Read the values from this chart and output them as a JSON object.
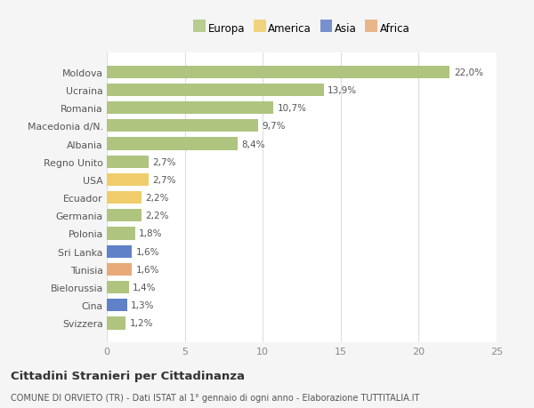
{
  "countries": [
    "Moldova",
    "Ucraina",
    "Romania",
    "Macedonia d/N.",
    "Albania",
    "Regno Unito",
    "USA",
    "Ecuador",
    "Germania",
    "Polonia",
    "Sri Lanka",
    "Tunisia",
    "Bielorussia",
    "Cina",
    "Svizzera"
  ],
  "values": [
    22.0,
    13.9,
    10.7,
    9.7,
    8.4,
    2.7,
    2.7,
    2.2,
    2.2,
    1.8,
    1.6,
    1.6,
    1.4,
    1.3,
    1.2
  ],
  "labels": [
    "22,0%",
    "13,9%",
    "10,7%",
    "9,7%",
    "8,4%",
    "2,7%",
    "2,7%",
    "2,2%",
    "2,2%",
    "1,8%",
    "1,6%",
    "1,6%",
    "1,4%",
    "1,3%",
    "1,2%"
  ],
  "continents": [
    "Europa",
    "Europa",
    "Europa",
    "Europa",
    "Europa",
    "Europa",
    "America",
    "America",
    "Europa",
    "Europa",
    "Asia",
    "Africa",
    "Europa",
    "Asia",
    "Europa"
  ],
  "colors": {
    "Europa": "#aec47f",
    "America": "#f0cd6a",
    "Asia": "#6080c8",
    "Africa": "#e8aa78"
  },
  "xlim": [
    0,
    25
  ],
  "xticks": [
    0,
    5,
    10,
    15,
    20,
    25
  ],
  "title": "Cittadini Stranieri per Cittadinanza",
  "subtitle": "COMUNE DI ORVIETO (TR) - Dati ISTAT al 1° gennaio di ogni anno - Elaborazione TUTTITALIA.IT",
  "background_color": "#f5f5f5",
  "plot_bg_color": "#ffffff",
  "grid_color": "#dddddd",
  "bar_height": 0.7,
  "legend_order": [
    "Europa",
    "America",
    "Asia",
    "Africa"
  ]
}
